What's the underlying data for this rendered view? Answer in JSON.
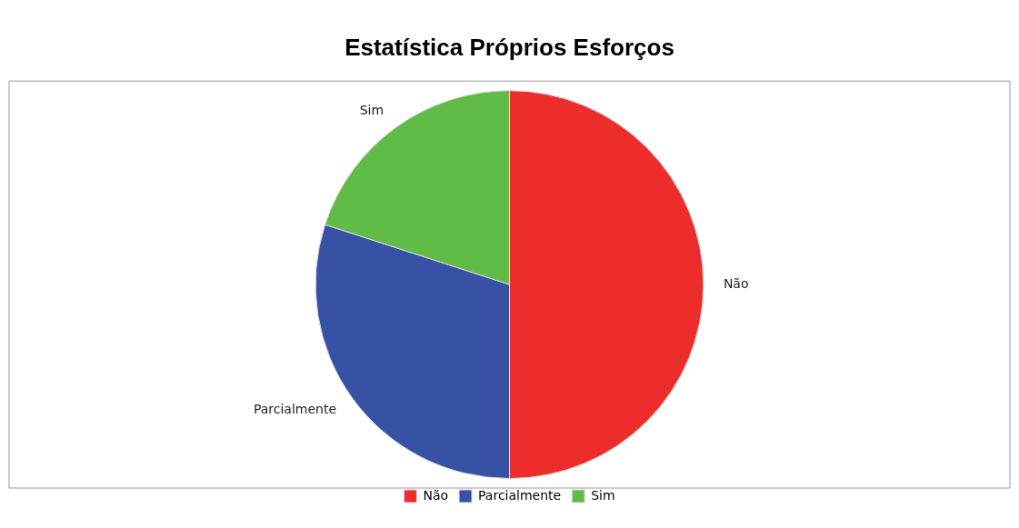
{
  "chart_data": {
    "type": "pie",
    "title": "Estatística Próprios Esforços",
    "categories": [
      "Não",
      "Parcialmente",
      "Sim"
    ],
    "values": [
      50,
      30,
      20
    ],
    "colors": [
      "#ec2d2b",
      "#3752a5",
      "#60bb47"
    ],
    "legend": "bottom"
  }
}
